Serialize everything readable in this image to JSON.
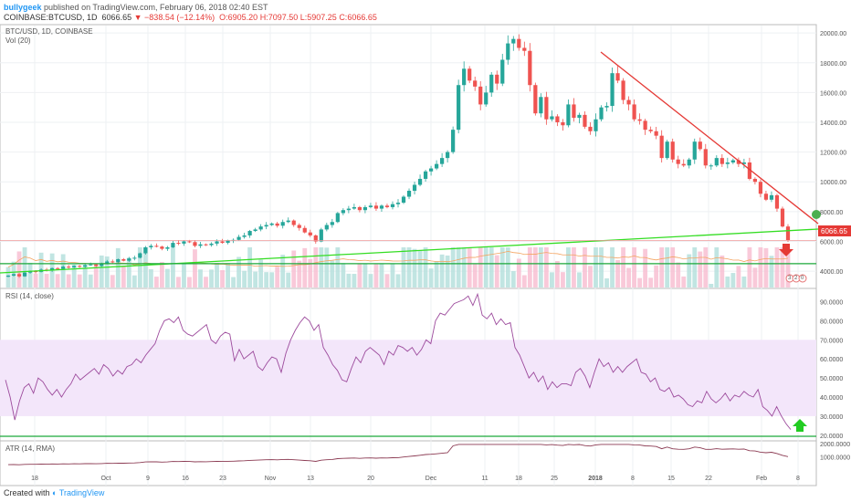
{
  "header": {
    "user": "bullygeek",
    "published_text": "published on TradingView.com, February 06, 2018 02:40 EST",
    "symbol": "COINBASE:BTCUSD, 1D",
    "last": "6066.65",
    "change": "−838.54 (−12.14%)",
    "o": "O:6905.20",
    "h": "H:7097.50",
    "l": "L:5907.25",
    "c": "C:6066.65"
  },
  "panes": {
    "main_label": "BTC/USD, 1D, COINBASE",
    "vol_label": "Vol (20)",
    "rsi_label": "RSI (14, close)",
    "atr_label": "ATR (14, RMA)"
  },
  "footer": {
    "created_with": "Created with",
    "brand": "TradingView"
  },
  "colors": {
    "up": "#26a69a",
    "down": "#ef5350",
    "trend": "#e53935",
    "support": "#1ca93a",
    "uptrend": "#33dd22",
    "rsi": "#9c4a9c",
    "rsi_band": "#f3e6fa",
    "atr": "#8b3a52",
    "vol_ma": "#f4a460"
  },
  "chart_data": [
    {
      "type": "candlestick",
      "title": "BTC/USD, 1D, COINBASE",
      "x_ticks": [
        "18",
        "Oct",
        "9",
        "16",
        "23",
        "Nov",
        "13",
        "20",
        "Dec",
        "11",
        "18",
        "25",
        "2018",
        "8",
        "15",
        "22",
        "Feb",
        "8"
      ],
      "y_ticks": [
        "4000.00",
        "6000.00",
        "8000.00",
        "10000.00",
        "12000.00",
        "14000.00",
        "16000.00",
        "18000.00",
        "20000.00"
      ],
      "ylim": [
        2900,
        20500
      ],
      "last_price_label": "6066.65",
      "close_series": [
        3700,
        3800,
        3650,
        3900,
        4000,
        3950,
        4100,
        4050,
        4200,
        4150,
        4300,
        4250,
        4350,
        4300,
        4400,
        4450,
        4350,
        4500,
        4650,
        4600,
        4800,
        4700,
        4850,
        4900,
        5200,
        5600,
        5700,
        5650,
        5500,
        5600,
        5900,
        5850,
        6000,
        5950,
        5700,
        5800,
        5750,
        5850,
        6000,
        5900,
        6050,
        6100,
        6300,
        6400,
        6700,
        6800,
        7000,
        7100,
        7200,
        7050,
        7300,
        7400,
        7100,
        6900,
        6600,
        6400,
        6000,
        6800,
        7100,
        7300,
        7900,
        8100,
        8200,
        8300,
        8100,
        8300,
        8400,
        8200,
        8400,
        8300,
        8500,
        8600,
        9000,
        9400,
        9800,
        10200,
        10700,
        10900,
        11200,
        11600,
        12000,
        13500,
        16500,
        17600,
        16800,
        16400,
        15200,
        16000,
        17200,
        16600,
        18200,
        19300,
        19600,
        19000,
        18800,
        16500,
        14600,
        15700,
        14200,
        14400,
        14000,
        13800,
        15200,
        14300,
        14500,
        13700,
        13400,
        14200,
        15000,
        15100,
        17300,
        16800,
        15500,
        15200,
        14200,
        14100,
        13500,
        13400,
        13100,
        11600,
        12700,
        11500,
        11200,
        11100,
        11500,
        12700,
        12200,
        11100,
        11100,
        11600,
        11200,
        11300,
        11450,
        11200,
        11300,
        10200,
        10000,
        9200,
        8800,
        9100,
        8200,
        7000,
        6066
      ],
      "trendline_label": "downtrend",
      "horizontal_levels": [
        6066.65,
        4500
      ]
    },
    {
      "type": "bar",
      "title": "Vol (20)",
      "markers": [
        "3",
        "2",
        "0"
      ]
    },
    {
      "type": "line",
      "title": "RSI (14, close)",
      "y_ticks": [
        "20.0000",
        "30.0000",
        "40.0000",
        "50.0000",
        "60.0000",
        "70.0000",
        "80.0000",
        "90.0000"
      ],
      "ylim": [
        18,
        96
      ],
      "band": [
        30,
        70
      ],
      "values": [
        49,
        40,
        28,
        38,
        45,
        47,
        42,
        50,
        48,
        44,
        41,
        44,
        40,
        44,
        47,
        52,
        49,
        51,
        53,
        55,
        52,
        57,
        55,
        51,
        54,
        52,
        56,
        57,
        60,
        58,
        62,
        65,
        68,
        75,
        80,
        81,
        79,
        82,
        75,
        73,
        72,
        74,
        76,
        78,
        70,
        68,
        72,
        74,
        73,
        59,
        65,
        60,
        62,
        64,
        56,
        54,
        58,
        61,
        60,
        53,
        63,
        70,
        75,
        79,
        82,
        80,
        75,
        78,
        66,
        62,
        57,
        54,
        49,
        48,
        55,
        61,
        58,
        64,
        66,
        64,
        62,
        57,
        64,
        62,
        67,
        66,
        64,
        66,
        62,
        65,
        70,
        68,
        80,
        84,
        83,
        86,
        89,
        90,
        91,
        93,
        88,
        94,
        83,
        81,
        84,
        78,
        81,
        78,
        79,
        66,
        62,
        56,
        50,
        53,
        48,
        51,
        44,
        48,
        45,
        47,
        47,
        46,
        53,
        55,
        51,
        45,
        53,
        60,
        56,
        58,
        53,
        56,
        53,
        56,
        58,
        60,
        53,
        52,
        48,
        50,
        44,
        43,
        45,
        40,
        41,
        39,
        36,
        35,
        38,
        37,
        43,
        39,
        37,
        39,
        42,
        38,
        41,
        40,
        43,
        41,
        40,
        44,
        35,
        33,
        30,
        35,
        30,
        26,
        23
      ]
    },
    {
      "type": "line",
      "title": "ATR (14, RMA)",
      "y_ticks": [
        "1000.0000",
        "2000.0000"
      ],
      "ylim": [
        0,
        2150
      ]
    }
  ]
}
